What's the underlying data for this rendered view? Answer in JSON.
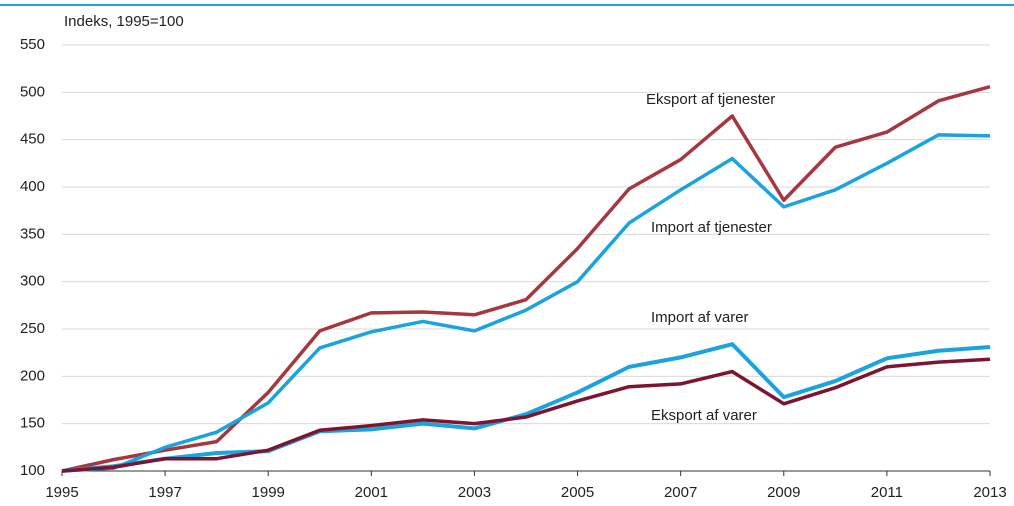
{
  "chart_data": {
    "type": "line",
    "ylabel": "Indeks, 1995=100",
    "x": [
      1995,
      1996,
      1997,
      1998,
      1999,
      2000,
      2001,
      2002,
      2003,
      2004,
      2005,
      2006,
      2007,
      2008,
      2009,
      2010,
      2011,
      2012,
      2013
    ],
    "xlim": [
      1995,
      2013
    ],
    "xticks": [
      1995,
      1997,
      1999,
      2001,
      2003,
      2005,
      2007,
      2009,
      2011,
      2013
    ],
    "ylim": [
      100,
      550
    ],
    "yticks": [
      100,
      150,
      200,
      250,
      300,
      350,
      400,
      450,
      500,
      550
    ],
    "grid": true,
    "series": [
      {
        "name": "Eksport af tjenester",
        "color": "#a6373f",
        "values": [
          100,
          112,
          122,
          131,
          183,
          248,
          267,
          268,
          265,
          281,
          335,
          398,
          429,
          475,
          386,
          442,
          458,
          491,
          506
        ]
      },
      {
        "name": "Import af tjenester",
        "color": "#1aa3dd",
        "values": [
          100,
          103,
          125,
          141,
          172,
          230,
          247,
          258,
          248,
          270,
          300,
          362,
          397,
          430,
          379,
          397,
          425,
          455,
          454
        ]
      },
      {
        "name": "Import af varer",
        "color": "#1aa3dd",
        "values": [
          100,
          105,
          113,
          119,
          121,
          142,
          144,
          150,
          145,
          160,
          183,
          210,
          220,
          234,
          178,
          195,
          219,
          227,
          231
        ]
      },
      {
        "name": "Eksport af varer",
        "color": "#7d1530",
        "values": [
          100,
          104,
          113,
          113,
          122,
          143,
          148,
          154,
          150,
          157,
          174,
          189,
          192,
          205,
          171,
          188,
          210,
          215,
          218
        ]
      }
    ]
  }
}
